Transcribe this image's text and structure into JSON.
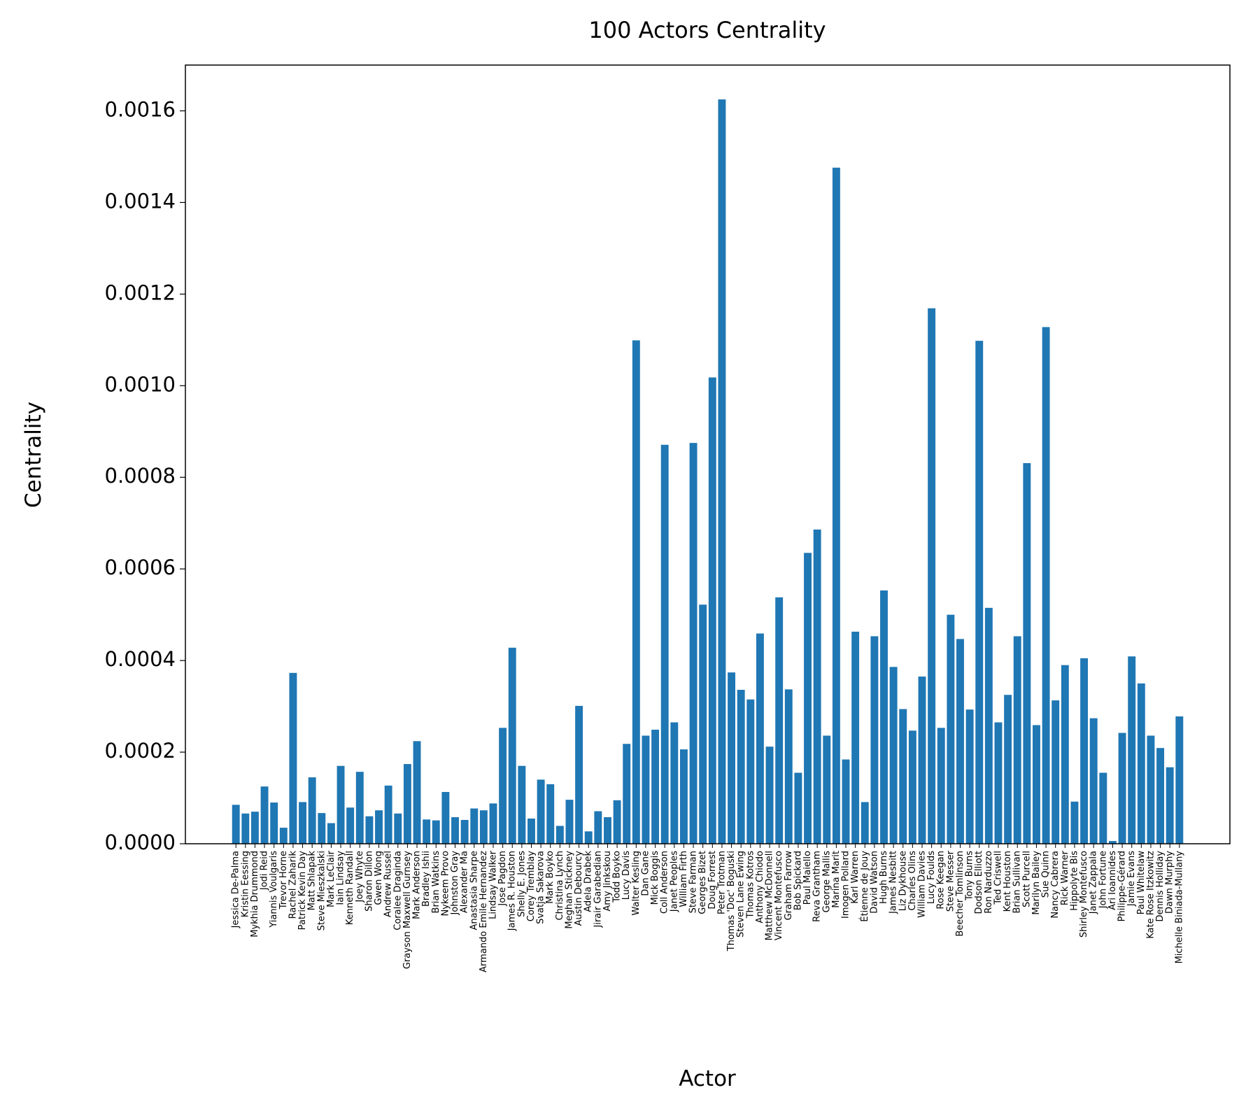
{
  "chart_data": {
    "type": "bar",
    "title": "100 Actors Centrality",
    "x_label": "Actor",
    "y_label": "Centrality",
    "color": "#1f77b4",
    "categories": [
      "Jessica De-Palma",
      "Kristin Eessing",
      "Mykhia Drummond",
      "Jodi Reid",
      "Yiannis Voulgaris",
      "Trevor Horne",
      "Rachel Zaharik",
      "Patrick Kevin Day",
      "Matt Shlapak",
      "Steve Mieszkalski",
      "Mark LeClair",
      "Iain Lindsay",
      "Kenneth Randall",
      "Joey Whyte",
      "Sharon Dillon",
      "Gwen Wong",
      "Andrew Russel",
      "Coralee Draginda",
      "Grayson Maxwell Gurnsey",
      "Mark Anderson",
      "Bradley Ishii",
      "Brian Watkins",
      "Nykeem Provo",
      "Johnston Gray",
      "Alexander Ma",
      "Anastasia Sharpe",
      "Armando Emile Hernandez",
      "Lindsay Walker",
      "Jose Pagdon",
      "James R. Houston",
      "Shelly E. Jones",
      "Corey Tremblay",
      "Svatja Sakarova",
      "Mark Boyko",
      "Christina Lynch",
      "Meghan Stickney",
      "Austin Debourcy",
      "Adela Drabek",
      "Jirair Garabedian",
      "Amy Jinkskou",
      "Todd Boyko",
      "Lucy Davis",
      "Walter Kesling",
      "Dan Gane",
      "Mick Boggis",
      "Coll Anderson",
      "Janet Peoples",
      "William Firth",
      "Steve Farman",
      "Georges Bizet",
      "Doug Forrest",
      "Peter Trotman",
      "Thomas 'Doc' Boguski",
      "Steven Lane Ewing",
      "Thomas Kotros",
      "Anthony Chiodo",
      "Matthew McDonnell",
      "Vincent Montefusco",
      "Graham Farrow",
      "Bob Spickard",
      "Paul Maiello",
      "Reva Grantham",
      "George Mallis",
      "Marina Marit",
      "Imogen Pollard",
      "Karl Warren",
      "Étienne de Jouy",
      "David Watson",
      "Hugh Burns",
      "James Nesbitt",
      "Liz Dykhouse",
      "Charles Olins",
      "William Davies",
      "Lucy Foulds",
      "Rose Keegan",
      "Steve Messer",
      "Beecher Tomlinson",
      "Tony Burns",
      "Dodson Elliott",
      "Ron Narduzzo",
      "Ted Criswell",
      "Kent Houston",
      "Brian Sullivan",
      "Scott Purcell",
      "Marilyn Bailey",
      "Sue Quinn",
      "Nancy Cabrera",
      "Rick Warner",
      "Hippolyte Bis",
      "Shirley Montefusco",
      "Janet Zappala",
      "John Fortune",
      "Ari Ioannides",
      "Philippe-Gérard",
      "Jamie Evans",
      "Paul Whitelaw",
      "Kate Rose Itzkowitz",
      "Dennis Holliday",
      "Dawn Murphy",
      "Michelle Biniada-Mullany"
    ],
    "values": [
      8.5e-05,
      6.6e-05,
      7e-05,
      0.000125,
      9e-05,
      3.5e-05,
      0.000373,
      9.1e-05,
      0.000145,
      6.7e-05,
      4.5e-05,
      0.00017,
      7.9e-05,
      0.000157,
      6e-05,
      7.3e-05,
      0.000127,
      6.6e-05,
      0.000174,
      0.000224,
      5.3e-05,
      5.1e-05,
      0.000113,
      5.8e-05,
      5.2e-05,
      7.7e-05,
      7.3e-05,
      8.8e-05,
      0.000253,
      0.000428,
      0.00017,
      5.5e-05,
      0.00014,
      0.00013,
      3.9e-05,
      9.6e-05,
      0.000301,
      2.7e-05,
      7.1e-05,
      5.8e-05,
      9.5e-05,
      0.000218,
      0.001099,
      0.000236,
      0.000249,
      0.000871,
      0.000265,
      0.000206,
      0.000875,
      0.000522,
      0.001018,
      0.001625,
      0.000374,
      0.000336,
      0.000315,
      0.000459,
      0.000212,
      0.000538,
      0.000337,
      0.000155,
      0.000635,
      0.000686,
      0.000236,
      0.001476,
      0.000184,
      0.000463,
      9.1e-05,
      0.000453,
      0.000553,
      0.000386,
      0.000294,
      0.000247,
      0.000365,
      0.001169,
      0.000253,
      0.0005,
      0.000447,
      0.000293,
      0.001098,
      0.000515,
      0.000265,
      0.000325,
      0.000453,
      0.000831,
      0.000259,
      0.001128,
      0.000313,
      0.00039,
      9.2e-05,
      0.000405,
      0.000274,
      0.000155,
      6e-06,
      0.000242,
      0.000409,
      0.00035,
      0.000236,
      0.000209,
      0.000167,
      0.000278
    ],
    "ylim": [
      0,
      0.0017
    ],
    "yticks": [
      {
        "value": 0,
        "label": "0.0000"
      },
      {
        "value": 0.0002,
        "label": "0.0002"
      },
      {
        "value": 0.0004,
        "label": "0.0004"
      },
      {
        "value": 0.0006,
        "label": "0.0006"
      },
      {
        "value": 0.0008,
        "label": "0.0008"
      },
      {
        "value": 0.001,
        "label": "0.0010"
      },
      {
        "value": 0.0012,
        "label": "0.0012"
      },
      {
        "value": 0.0014,
        "label": "0.0014"
      },
      {
        "value": 0.0016,
        "label": "0.0016"
      }
    ]
  }
}
